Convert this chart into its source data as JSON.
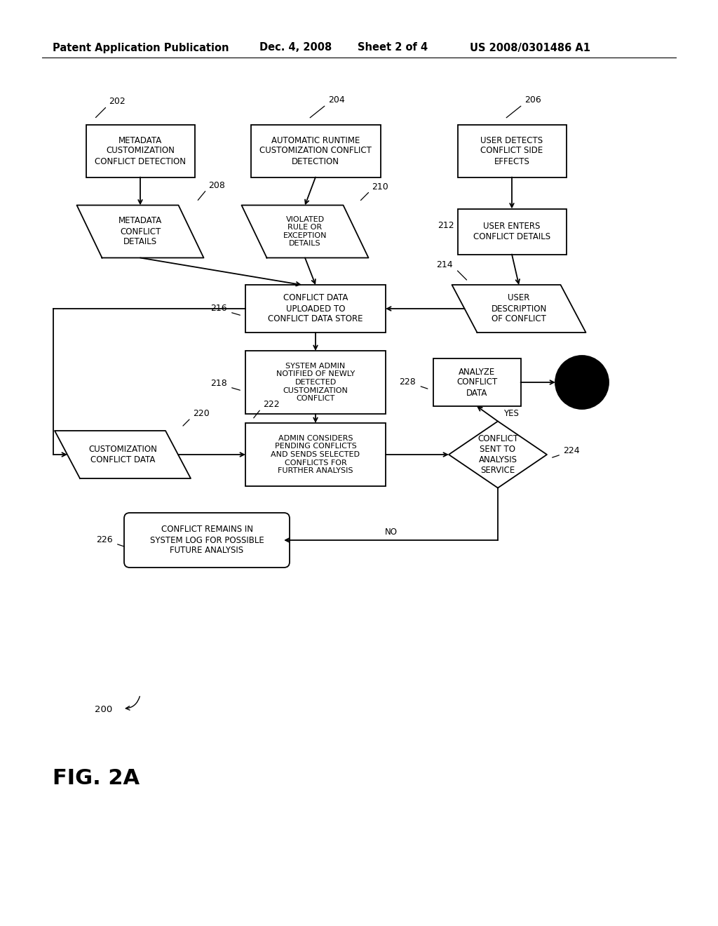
{
  "bg_color": "#ffffff",
  "header_text": "Patent Application Publication",
  "header_date": "Dec. 4, 2008",
  "header_sheet": "Sheet 2 of 4",
  "header_patent": "US 2008/0301486 A1",
  "fig_label": "FIG. 2A",
  "fig_number": "200",
  "line_color": "#000000",
  "text_color": "#000000"
}
